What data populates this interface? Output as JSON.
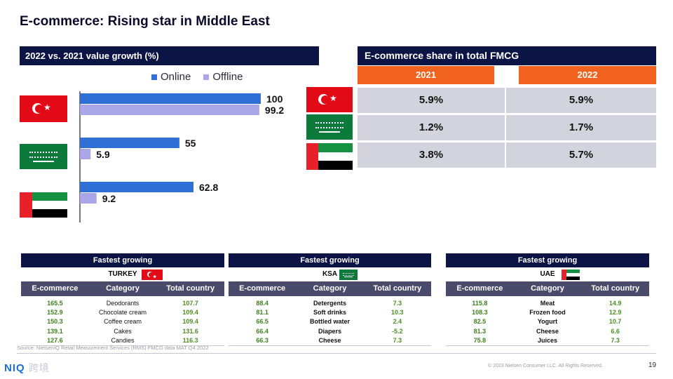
{
  "title": "E-commerce: Rising star in Middle East",
  "growth": {
    "header": "2022 vs. 2021 value growth (%)",
    "legend": [
      {
        "name": "Online",
        "color": "#2f6fd6"
      },
      {
        "name": "Offline",
        "color": "#a9a5e6"
      }
    ]
  },
  "chart_data": {
    "type": "bar",
    "orientation": "horizontal",
    "title": "2022 vs. 2021 value growth (%)",
    "categories": [
      "Turkey",
      "KSA",
      "UAE"
    ],
    "series": [
      {
        "name": "Online",
        "values": [
          100,
          55,
          62.8
        ],
        "labels": [
          "100",
          "55",
          "62.8"
        ],
        "color": "#2f6fd6"
      },
      {
        "name": "Offline",
        "values": [
          99.2,
          5.9,
          9.2
        ],
        "labels": [
          "99.2",
          "5.9",
          "9.2"
        ],
        "color": "#a9a5e6"
      }
    ],
    "xlim": [
      0,
      100
    ],
    "grid": false,
    "legend_position": "top"
  },
  "share": {
    "header": "E-commerce share in total FMCG",
    "years": [
      "2021",
      "2022"
    ],
    "rows": [
      {
        "flag": "turkey-flag",
        "values": [
          "5.9%",
          "5.9%"
        ]
      },
      {
        "flag": "saudi-flag",
        "values": [
          "1.2%",
          "1.7%"
        ]
      },
      {
        "flag": "uae-flag",
        "values": [
          "3.8%",
          "5.7%"
        ]
      }
    ]
  },
  "fastest": {
    "header": "Fastest growing",
    "columns": [
      "E-commerce",
      "Category",
      "Total country"
    ],
    "tables": [
      {
        "country": "TURKEY",
        "flag": "turkey-flag",
        "rows": [
          {
            "ecommerce": "165.5",
            "category": "Deodorants",
            "total": "107.7"
          },
          {
            "ecommerce": "152.9",
            "category": "Chocolate cream",
            "total": "109.4"
          },
          {
            "ecommerce": "150.3",
            "category": "Coffee cream",
            "total": "109.4"
          },
          {
            "ecommerce": "139.1",
            "category": "Cakes",
            "total": "131.6"
          },
          {
            "ecommerce": "127.6",
            "category": "Candies",
            "total": "116.3"
          }
        ]
      },
      {
        "country": "KSA",
        "flag": "saudi-flag",
        "rows": [
          {
            "ecommerce": "88.4",
            "category": "Detergents",
            "total": "7.3"
          },
          {
            "ecommerce": "81.1",
            "category": "Soft  drinks",
            "total": "10.3"
          },
          {
            "ecommerce": "66.5",
            "category": "Bottled water",
            "total": "2.4"
          },
          {
            "ecommerce": "66.4",
            "category": "Diapers",
            "total": "-5.2"
          },
          {
            "ecommerce": "66.3",
            "category": "Cheese",
            "total": "7.3"
          }
        ]
      },
      {
        "country": "UAE",
        "flag": "uae-flag",
        "rows": [
          {
            "ecommerce": "115.8",
            "category": "Meat",
            "total": "14.9"
          },
          {
            "ecommerce": "108.3",
            "category": "Frozen food",
            "total": "12.9"
          },
          {
            "ecommerce": "82.5",
            "category": "Yogurt",
            "total": "10.7"
          },
          {
            "ecommerce": "81.3",
            "category": "Cheese",
            "total": "6.6"
          },
          {
            "ecommerce": "75.8",
            "category": "Juices",
            "total": "7.3"
          }
        ]
      }
    ]
  },
  "footer": {
    "source": "Source: NielsenIQ Retail Measurement Services (RMS) FMCG data MAT Q4 2022",
    "logo": "NIQ",
    "watermark": "跨境",
    "copyright": "© 2023 Nielsen Consumer LLC. All Rights Reserved.",
    "page": "19"
  }
}
